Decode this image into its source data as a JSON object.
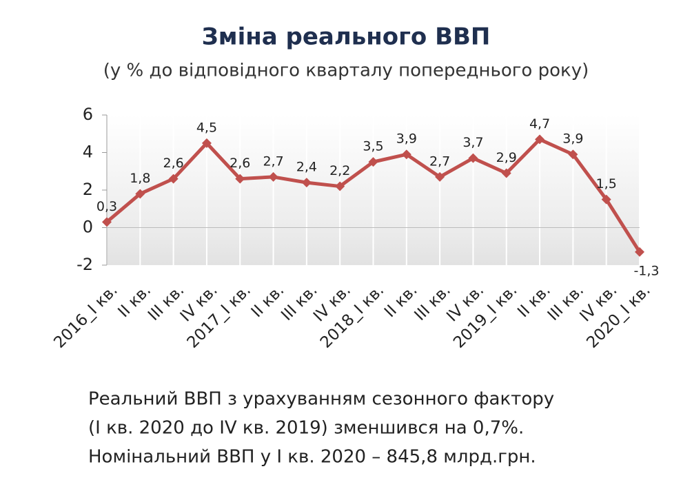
{
  "chart_data": {
    "type": "line",
    "title": "Зміна реального ВВП",
    "subtitle": "(у % до відповідного кварталу попереднього року)",
    "categories": [
      "2016_I кв.",
      "II кв.",
      "III кв.",
      "IV кв.",
      "2017_I кв.",
      "II кв.",
      "III кв.",
      "IV кв.",
      "2018_I кв.",
      "II кв.",
      "III кв.",
      "IV кв.",
      "2019_I кв.",
      "II кв.",
      "III кв.",
      "IV кв.",
      "2020_I кв."
    ],
    "values": [
      0.3,
      1.8,
      2.6,
      4.5,
      2.6,
      2.7,
      2.4,
      2.2,
      3.5,
      3.9,
      2.7,
      3.7,
      2.9,
      4.7,
      3.9,
      1.5,
      -1.3
    ],
    "value_labels": [
      "0,3",
      "1,8",
      "2,6",
      "4,5",
      "2,6",
      "2,7",
      "2,4",
      "2,2",
      "3,5",
      "3,9",
      "2,7",
      "3,7",
      "2,9",
      "4,7",
      "3,9",
      "1,5",
      "-1,3"
    ],
    "color": "#c0504d",
    "ylim": [
      -2,
      6
    ],
    "yticks": [
      6,
      4,
      2,
      0,
      -2
    ],
    "grid": true,
    "notes": [
      "Реальний ВВП з урахуванням сезонного фактору",
      "(I кв. 2020 до IV кв. 2019) зменшився на 0,7%.",
      "Номінальний ВВП у I кв. 2020 – 845,8 млрд.грн."
    ]
  }
}
